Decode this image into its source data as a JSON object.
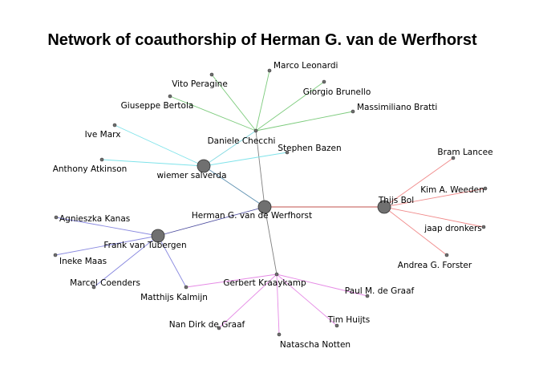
{
  "title": "Network of coauthorship of Herman G. van de Werfhorst",
  "colors": {
    "node_fill": "#707070",
    "node_stroke": "#333333",
    "edge_default": "#8c8c8c"
  },
  "nodes": [
    {
      "id": "herman",
      "label": "Herman G. van de Werfhorst",
      "size": "large"
    },
    {
      "id": "chechi",
      "label": "Daniele Checchi",
      "size": "small"
    },
    {
      "id": "salverda",
      "label": "wiemer salverda",
      "size": "large"
    },
    {
      "id": "bol",
      "label": "Thijs Bol",
      "size": "large"
    },
    {
      "id": "tubergen",
      "label": "Frank van Tubergen",
      "size": "large"
    },
    {
      "id": "kraaykamp",
      "label": "Gerbert Kraaykamp",
      "size": "small"
    },
    {
      "id": "leonardi",
      "label": "Marco Leonardi",
      "size": "small"
    },
    {
      "id": "peragine",
      "label": "Vito Peragine",
      "size": "small"
    },
    {
      "id": "brunello",
      "label": "Giorgio Brunello",
      "size": "small"
    },
    {
      "id": "bertola",
      "label": "Giuseppe Bertola",
      "size": "small"
    },
    {
      "id": "bratti",
      "label": "Massimiliano Bratti",
      "size": "small"
    },
    {
      "id": "marx",
      "label": "Ive Marx",
      "size": "small"
    },
    {
      "id": "bazen",
      "label": "Stephen Bazen",
      "size": "small"
    },
    {
      "id": "atkinson",
      "label": "Anthony Atkinson",
      "size": "small"
    },
    {
      "id": "lancee",
      "label": "Bram Lancee",
      "size": "small"
    },
    {
      "id": "weeden",
      "label": "Kim A. Weeden",
      "size": "small"
    },
    {
      "id": "dronkers",
      "label": "jaap dronkers",
      "size": "small"
    },
    {
      "id": "forster",
      "label": "Andrea G. Forster",
      "size": "small"
    },
    {
      "id": "kanas",
      "label": "Agnieszka Kanas",
      "size": "small"
    },
    {
      "id": "maas",
      "label": "Ineke Maas",
      "size": "small"
    },
    {
      "id": "coenders",
      "label": "Marcel Coenders",
      "size": "small"
    },
    {
      "id": "kalmijn",
      "label": "Matthijs Kalmijn",
      "size": "small"
    },
    {
      "id": "degraaf_p",
      "label": "Paul M. de Graaf",
      "size": "small"
    },
    {
      "id": "degraaf_n",
      "label": "Nan Dirk de Graaf",
      "size": "small"
    },
    {
      "id": "huijts",
      "label": "Tim Huijts",
      "size": "small"
    },
    {
      "id": "notten",
      "label": "Natascha Notten",
      "size": "small"
    }
  ],
  "edges": [
    {
      "from": "herman",
      "to": "chechi",
      "color": "#808080"
    },
    {
      "from": "herman",
      "to": "salverda",
      "color": "#5b8fb0"
    },
    {
      "from": "herman",
      "to": "bol",
      "color": "#c0504d"
    },
    {
      "from": "herman",
      "to": "tubergen",
      "color": "#4b4b9e"
    },
    {
      "from": "herman",
      "to": "kraaykamp",
      "color": "#808080"
    },
    {
      "from": "chechi",
      "to": "leonardi",
      "color": "#7ccb7c"
    },
    {
      "from": "chechi",
      "to": "peragine",
      "color": "#7ccb7c"
    },
    {
      "from": "chechi",
      "to": "brunello",
      "color": "#7ccb7c"
    },
    {
      "from": "chechi",
      "to": "bertola",
      "color": "#7ccb7c"
    },
    {
      "from": "chechi",
      "to": "bratti",
      "color": "#7ccb7c"
    },
    {
      "from": "chechi",
      "to": "salverda",
      "color": "#7fd8e0"
    },
    {
      "from": "salverda",
      "to": "marx",
      "color": "#7fe3ea"
    },
    {
      "from": "salverda",
      "to": "atkinson",
      "color": "#7fe3ea"
    },
    {
      "from": "salverda",
      "to": "bazen",
      "color": "#7fe3ea"
    },
    {
      "from": "bol",
      "to": "lancee",
      "color": "#f08a8a"
    },
    {
      "from": "bol",
      "to": "weeden",
      "color": "#f08a8a"
    },
    {
      "from": "bol",
      "to": "dronkers",
      "color": "#f08a8a"
    },
    {
      "from": "bol",
      "to": "forster",
      "color": "#f08a8a"
    },
    {
      "from": "tubergen",
      "to": "kanas",
      "color": "#8a8ae0"
    },
    {
      "from": "tubergen",
      "to": "maas",
      "color": "#8a8ae0"
    },
    {
      "from": "tubergen",
      "to": "coenders",
      "color": "#8a8ae0"
    },
    {
      "from": "tubergen",
      "to": "kalmijn",
      "color": "#8a8ae0"
    },
    {
      "from": "kraaykamp",
      "to": "kalmijn",
      "color": "#e58ae5"
    },
    {
      "from": "kraaykamp",
      "to": "degraaf_p",
      "color": "#e58ae5"
    },
    {
      "from": "kraaykamp",
      "to": "degraaf_n",
      "color": "#e58ae5"
    },
    {
      "from": "kraaykamp",
      "to": "huijts",
      "color": "#e58ae5"
    },
    {
      "from": "kraaykamp",
      "to": "notten",
      "color": "#e58ae5"
    }
  ]
}
